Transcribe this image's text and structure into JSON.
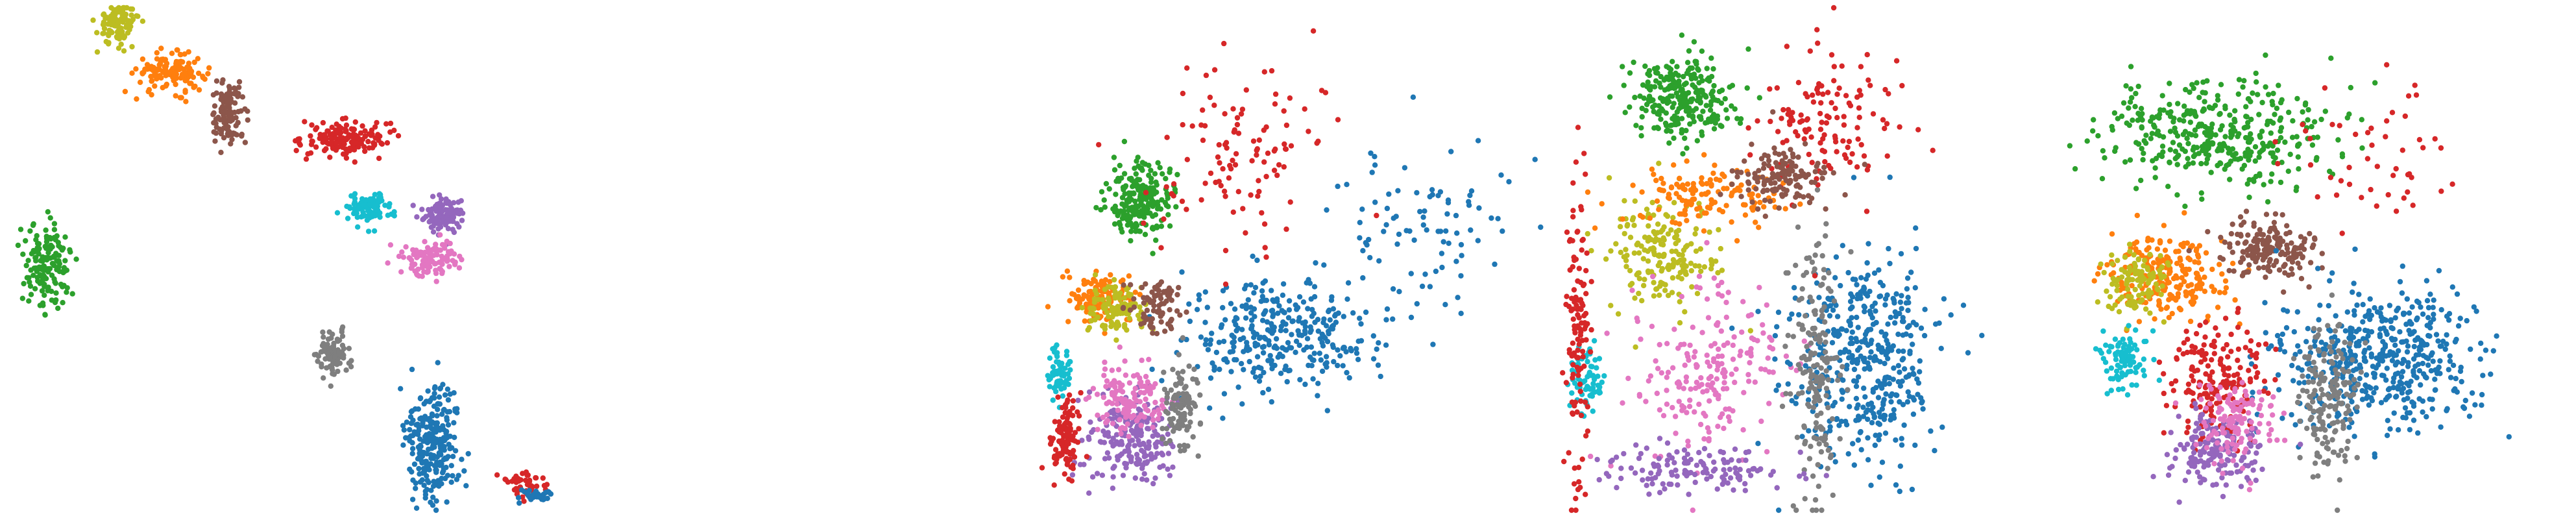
{
  "figure": {
    "description_text": "",
    "point_radius_units": 1
  },
  "palette": {
    "c0": "#1f77b4",
    "c1": "#ff7f0e",
    "c2": "#2ca02c",
    "c3": "#d62728",
    "c4": "#9467bd",
    "c5": "#8c564b",
    "c6": "#e377c2",
    "c7": "#7f7f7f",
    "c8": "#bcbd22",
    "c9": "#17becf"
  },
  "chart_data": [
    {
      "type": "scatter",
      "title": "",
      "xlabel": "",
      "ylabel": "",
      "axes": "off",
      "grid": false,
      "legend": "none",
      "xlim": [
        0,
        100
      ],
      "ylim": [
        0,
        100
      ],
      "clusters": [
        {
          "name": "c8",
          "center": [
            19,
            97
          ],
          "spread": [
            3,
            3.5
          ],
          "n": 110
        },
        {
          "name": "c1",
          "center": [
            28,
            87
          ],
          "spread": [
            5,
            3
          ],
          "n": 140
        },
        {
          "name": "c5",
          "center": [
            38,
            79
          ],
          "spread": [
            2.5,
            5
          ],
          "n": 110
        },
        {
          "name": "c3",
          "center": [
            58,
            74
          ],
          "spread": [
            6,
            3
          ],
          "n": 150
        },
        {
          "name": "c9",
          "center": [
            62,
            60
          ],
          "spread": [
            3.5,
            2.5
          ],
          "n": 100
        },
        {
          "name": "c4",
          "center": [
            75,
            59
          ],
          "spread": [
            3,
            3
          ],
          "n": 110
        },
        {
          "name": "c6",
          "center": [
            73,
            50
          ],
          "spread": [
            4,
            3
          ],
          "n": 110
        },
        {
          "name": "c2",
          "center": [
            7,
            49
          ],
          "spread": [
            3.2,
            7
          ],
          "n": 150
        },
        {
          "name": "c7",
          "center": [
            56,
            31
          ],
          "spread": [
            2.5,
            3.5
          ],
          "n": 90
        },
        {
          "name": "c0",
          "center": [
            73,
            14
          ],
          "spread": [
            4,
            10
          ],
          "n": 260
        },
        {
          "name": "c3",
          "center": [
            89,
            5
          ],
          "spread": [
            3,
            2
          ],
          "n": 40
        },
        {
          "name": "c0",
          "center": [
            91,
            3
          ],
          "spread": [
            3.5,
            1
          ],
          "n": 35
        }
      ]
    },
    {
      "type": "scatter",
      "title": "",
      "xlabel": "",
      "ylabel": "",
      "axes": "off",
      "grid": false,
      "legend": "none",
      "xlim": [
        0,
        100
      ],
      "ylim": [
        0,
        100
      ],
      "clusters": [
        {
          "name": "c2",
          "center": [
            20,
            62
          ],
          "spread": [
            5,
            6
          ],
          "n": 220
        },
        {
          "name": "c0",
          "center": [
            48,
            35
          ],
          "spread": [
            16,
            10
          ],
          "n": 320
        },
        {
          "name": "c0",
          "center": [
            75,
            55
          ],
          "spread": [
            15,
            14
          ],
          "n": 90
        },
        {
          "name": "c3",
          "center": [
            40,
            72
          ],
          "spread": [
            14,
            16
          ],
          "n": 110
        },
        {
          "name": "c1",
          "center": [
            12,
            42
          ],
          "spread": [
            5,
            4
          ],
          "n": 120
        },
        {
          "name": "c8",
          "center": [
            15,
            40
          ],
          "spread": [
            5,
            4
          ],
          "n": 110
        },
        {
          "name": "c4",
          "center": [
            18,
            14
          ],
          "spread": [
            7,
            8
          ],
          "n": 200
        },
        {
          "name": "c6",
          "center": [
            18,
            22
          ],
          "spread": [
            6,
            6
          ],
          "n": 130
        },
        {
          "name": "c9",
          "center": [
            4,
            27
          ],
          "spread": [
            1.8,
            4
          ],
          "n": 70
        },
        {
          "name": "c3",
          "center": [
            5,
            14
          ],
          "spread": [
            2.5,
            6
          ],
          "n": 110
        },
        {
          "name": "c7",
          "center": [
            28,
            20
          ],
          "spread": [
            3,
            7
          ],
          "n": 110
        },
        {
          "name": "c5",
          "center": [
            23,
            41
          ],
          "spread": [
            5,
            4
          ],
          "n": 80
        }
      ]
    },
    {
      "type": "scatter",
      "title": "",
      "xlabel": "",
      "ylabel": "",
      "axes": "off",
      "grid": false,
      "legend": "none",
      "xlim": [
        0,
        100
      ],
      "ylim": [
        0,
        100
      ],
      "clusters": [
        {
          "name": "c2",
          "center": [
            26,
            82
          ],
          "spread": [
            9,
            7
          ],
          "n": 260
        },
        {
          "name": "c8",
          "center": [
            22,
            50
          ],
          "spread": [
            9,
            10
          ],
          "n": 180
        },
        {
          "name": "c6",
          "center": [
            32,
            28
          ],
          "spread": [
            12,
            15
          ],
          "n": 200
        },
        {
          "name": "c0",
          "center": [
            62,
            30
          ],
          "spread": [
            13,
            18
          ],
          "n": 420
        },
        {
          "name": "c7",
          "center": [
            52,
            30
          ],
          "spread": [
            4,
            22
          ],
          "n": 170
        },
        {
          "name": "c3",
          "center": [
            55,
            78
          ],
          "spread": [
            12,
            14
          ],
          "n": 130
        },
        {
          "name": "c1",
          "center": [
            30,
            62
          ],
          "spread": [
            14,
            5
          ],
          "n": 130
        },
        {
          "name": "c5",
          "center": [
            45,
            66
          ],
          "spread": [
            8,
            5
          ],
          "n": 130
        },
        {
          "name": "c4",
          "center": [
            30,
            8
          ],
          "spread": [
            16,
            4
          ],
          "n": 130
        },
        {
          "name": "c9",
          "center": [
            7,
            26
          ],
          "spread": [
            3,
            6
          ],
          "n": 70
        },
        {
          "name": "c3",
          "center": [
            5,
            36
          ],
          "spread": [
            2,
            26
          ],
          "n": 120
        }
      ]
    },
    {
      "type": "scatter",
      "title": "",
      "xlabel": "",
      "ylabel": "",
      "axes": "off",
      "grid": false,
      "legend": "none",
      "xlim": [
        0,
        100
      ],
      "ylim": [
        0,
        100
      ],
      "clusters": [
        {
          "name": "c2",
          "center": [
            30,
            75
          ],
          "spread": [
            18,
            9
          ],
          "n": 380
        },
        {
          "name": "c1",
          "center": [
            20,
            47
          ],
          "spread": [
            10,
            7
          ],
          "n": 230
        },
        {
          "name": "c5",
          "center": [
            40,
            52
          ],
          "spread": [
            8,
            5
          ],
          "n": 170
        },
        {
          "name": "c8",
          "center": [
            15,
            46
          ],
          "spread": [
            6,
            6
          ],
          "n": 110
        },
        {
          "name": "c0",
          "center": [
            62,
            30
          ],
          "spread": [
            16,
            12
          ],
          "n": 480
        },
        {
          "name": "c3",
          "center": [
            30,
            26
          ],
          "spread": [
            8,
            10
          ],
          "n": 180
        },
        {
          "name": "c4",
          "center": [
            30,
            12
          ],
          "spread": [
            8,
            6
          ],
          "n": 170
        },
        {
          "name": "c6",
          "center": [
            34,
            18
          ],
          "spread": [
            7,
            7
          ],
          "n": 120
        },
        {
          "name": "c7",
          "center": [
            52,
            22
          ],
          "spread": [
            5,
            12
          ],
          "n": 170
        },
        {
          "name": "c9",
          "center": [
            12,
            30
          ],
          "spread": [
            4,
            5
          ],
          "n": 90
        },
        {
          "name": "c3",
          "center": [
            60,
            70
          ],
          "spread": [
            14,
            12
          ],
          "n": 50
        }
      ]
    }
  ]
}
